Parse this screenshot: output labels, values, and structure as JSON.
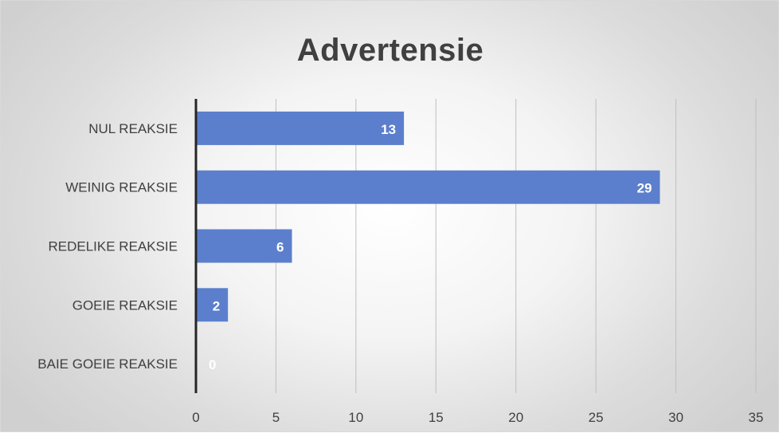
{
  "chart_data": {
    "type": "bar",
    "orientation": "horizontal",
    "title": "Advertensie",
    "categories": [
      "NUL REAKSIE",
      "WEINIG REAKSIE",
      "REDELIKE REAKSIE",
      "GOEIE REAKSIE",
      "BAIE GOEIE REAKSIE"
    ],
    "values": [
      13,
      29,
      6,
      2,
      0
    ],
    "xlim": [
      0,
      35
    ],
    "xticks": [
      "0",
      "5",
      "10",
      "15",
      "20",
      "25",
      "30",
      "35"
    ],
    "xlabel": "",
    "ylabel": "",
    "grid": true,
    "legend": "none",
    "data_labels": [
      "13",
      "29",
      "6",
      "2",
      "0"
    ],
    "bar_color": "#5b7fcc",
    "data_label_color": "#ffffff"
  }
}
